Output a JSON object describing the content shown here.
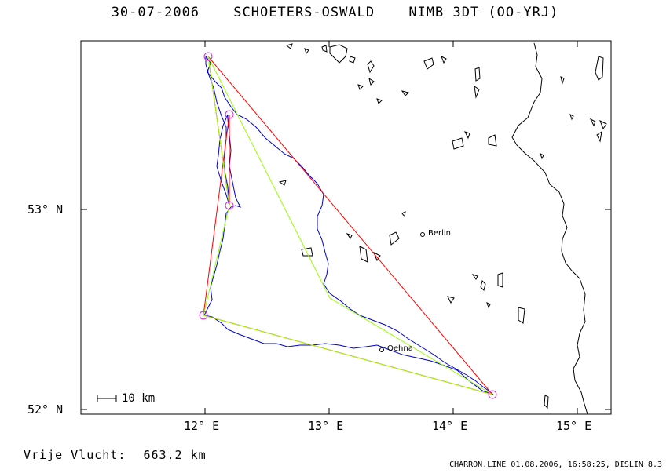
{
  "header": {
    "date": "30-07-2006",
    "pilot": "SCHOETERS-OSWALD",
    "aircraft": "NIMB 3DT (OO-YRJ)"
  },
  "axes": {
    "lat_labels": [
      "53° N",
      "52° N"
    ],
    "lon_labels": [
      "12° E",
      "13° E",
      "14° E",
      "15° E"
    ]
  },
  "scale": {
    "label": "10 km"
  },
  "cities": [
    {
      "name": "Berlin"
    },
    {
      "name": "Oehna"
    }
  ],
  "result": {
    "label": "Vrije Vlucht:",
    "value": "663.2 km"
  },
  "footer": {
    "text": "CHARRON.LINE 01.08.2006, 16:58:25, DISLIN 8.3"
  },
  "colors": {
    "track": "#0000cc",
    "triangle": "#ff0000",
    "optimized": "#99ff00",
    "turnpoint": "#cc33cc",
    "coast": "#000000"
  }
}
